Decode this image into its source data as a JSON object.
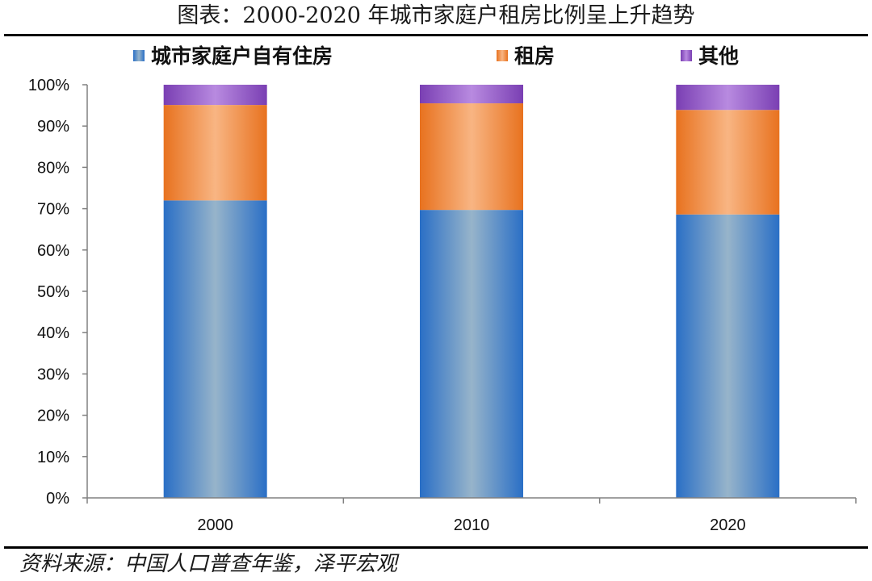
{
  "title": "图表：2000-2020 年城市家庭户租房比例呈上升趋势",
  "source": "资料来源：中国人口普查年鉴，泽平宏观",
  "chart_data": {
    "type": "bar",
    "stacked": true,
    "categories": [
      "2000",
      "2010",
      "2020"
    ],
    "series": [
      {
        "name": "城市家庭户自有住房",
        "values": [
          72.0,
          69.7,
          68.6
        ],
        "color": "#2e75c8"
      },
      {
        "name": "租房",
        "values": [
          23.1,
          25.8,
          25.3
        ],
        "color": "#f0822a"
      },
      {
        "name": "其他",
        "values": [
          4.9,
          4.5,
          6.1
        ],
        "color": "#8a4fc0"
      }
    ],
    "ylim": [
      0,
      100
    ],
    "yticks": [
      "0%",
      "10%",
      "20%",
      "30%",
      "40%",
      "50%",
      "60%",
      "70%",
      "80%",
      "90%",
      "100%"
    ],
    "legend_position": "top",
    "grid": false
  }
}
